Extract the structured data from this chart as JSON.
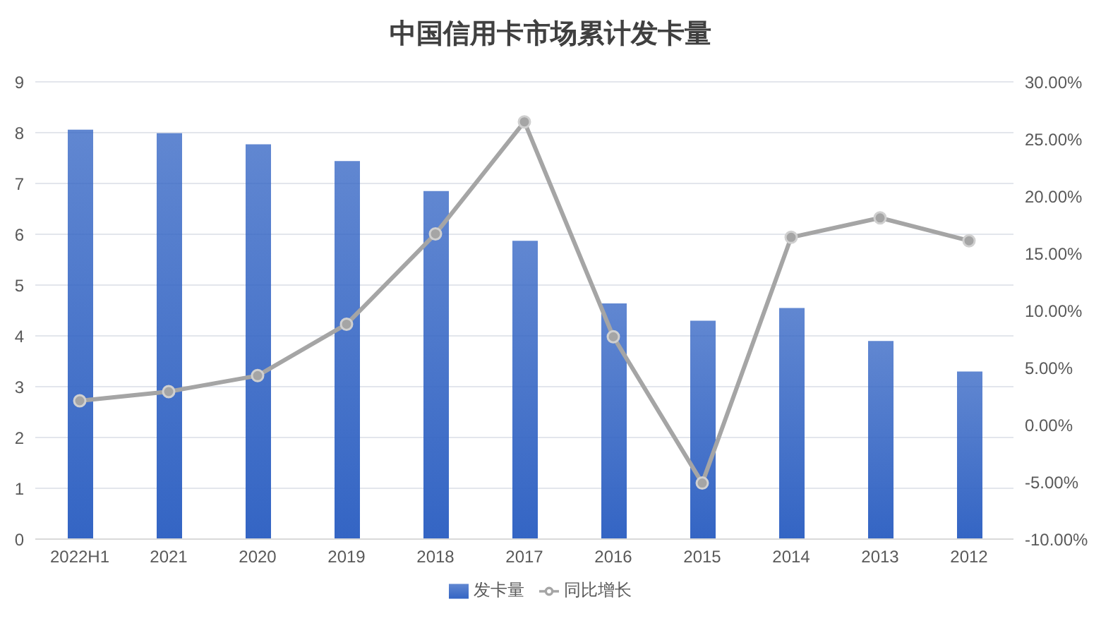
{
  "chart_data": {
    "type": "bar",
    "title": "中国信用卡市场累计发卡量",
    "categories": [
      "2022H1",
      "2021",
      "2020",
      "2019",
      "2018",
      "2017",
      "2016",
      "2015",
      "2014",
      "2013",
      "2012"
    ],
    "series": [
      {
        "name": "发卡量",
        "color": "#3465c4",
        "values": [
          8.06,
          7.99,
          7.77,
          7.44,
          6.85,
          5.87,
          4.64,
          4.3,
          4.55,
          3.9,
          3.3
        ]
      },
      {
        "name": "同比增长",
        "type": "line",
        "axis": "y2",
        "color": "#a5a5a5",
        "values": [
          2.1,
          2.9,
          4.3,
          8.8,
          16.7,
          26.5,
          7.7,
          -5.1,
          16.4,
          18.1,
          16.1
        ]
      }
    ],
    "ylim": [
      0,
      9
    ],
    "yticks": [
      0,
      1,
      2,
      3,
      4,
      5,
      6,
      7,
      8,
      9
    ],
    "y2lim": [
      -10,
      30
    ],
    "y2ticks": [
      {
        "value": -10,
        "label": "-10.00%"
      },
      {
        "value": -5,
        "label": "-5.00%"
      },
      {
        "value": 0,
        "label": "0.00%"
      },
      {
        "value": 5,
        "label": "5.00%"
      },
      {
        "value": 10,
        "label": "10.00%"
      },
      {
        "value": 15,
        "label": "15.00%"
      },
      {
        "value": 20,
        "label": "20.00%"
      },
      {
        "value": 25,
        "label": "25.00%"
      },
      {
        "value": 30,
        "label": "30.00%"
      }
    ],
    "grid": "y",
    "legend": "bottom",
    "marker": "circle",
    "line_style": "solid"
  }
}
